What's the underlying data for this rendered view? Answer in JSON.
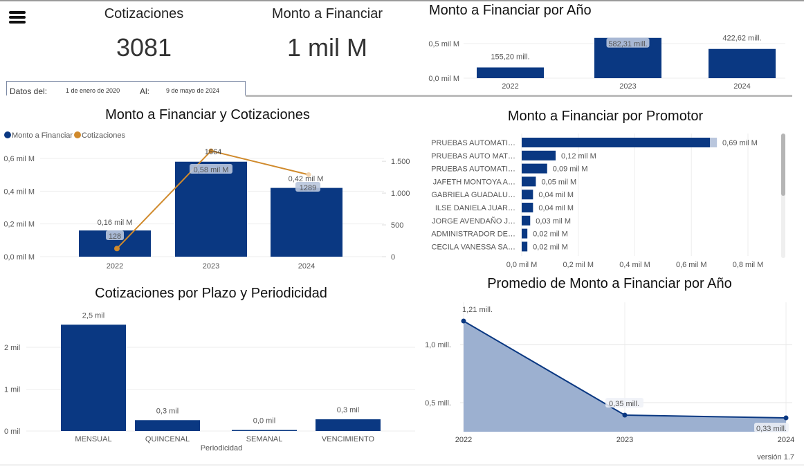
{
  "header": {
    "menu_icon": "hamburger-menu-icon",
    "kpis": [
      {
        "title": "Cotizaciones",
        "value": "3081"
      },
      {
        "title": "Monto a Financiar",
        "value": "1 mil M"
      }
    ],
    "date_range": {
      "from_label": "Datos del:",
      "from_value": "1 de enero de 2020",
      "to_label": "Al:",
      "to_value": "9 de mayo de 2024"
    }
  },
  "colors": {
    "bar": "#0a3882",
    "line": "#d08a2c",
    "area": "#9cb0d0",
    "label_bg": "#b9c6dd"
  },
  "footer": {
    "version": "versión 1.7"
  },
  "chart_data": [
    {
      "id": "monto-por-anio",
      "type": "bar",
      "title": "Monto a Financiar por Año",
      "categories": [
        "2022",
        "2023",
        "2024"
      ],
      "values": [
        155.2,
        582.31,
        422.62
      ],
      "data_labels": [
        "155,20 mill.",
        "582,31 mill.",
        "422,62 mill."
      ],
      "yticks": [
        0,
        500
      ],
      "ytick_labels": [
        "0,0 mil M",
        "0,5 mil M"
      ],
      "ylim": [
        0,
        600
      ],
      "unit": "millones"
    },
    {
      "id": "monto-y-cotizaciones",
      "type": "bar",
      "title": "Monto a Financiar y Cotizaciones",
      "legend": [
        "Monto a Financiar",
        "Cotizaciones"
      ],
      "legend_position": "top-left",
      "categories": [
        "2022",
        "2023",
        "2024"
      ],
      "series": [
        {
          "name": "Monto a Financiar",
          "type": "bar",
          "axis": "left",
          "values": [
            0.16,
            0.58,
            0.42
          ],
          "data_labels": [
            "0,16 mil M",
            "0,58 mil M",
            "0,42 mil M"
          ]
        },
        {
          "name": "Cotizaciones",
          "type": "line",
          "axis": "right",
          "values": [
            128,
            1664,
            1289
          ],
          "data_labels": [
            "128",
            "1664",
            "1289"
          ]
        }
      ],
      "yticks_left": [
        0,
        0.2,
        0.4,
        0.6
      ],
      "ytick_labels_left": [
        "0,0 mil M",
        "0,2 mil M",
        "0,4 mil M",
        "0,6 mil M"
      ],
      "ylim_left": [
        0,
        0.6
      ],
      "yticks_right": [
        0,
        500,
        1000,
        1500
      ],
      "ytick_labels_right": [
        "0",
        "500",
        "1.000",
        "1.500"
      ],
      "ylim_right": [
        0,
        1545
      ]
    },
    {
      "id": "monto-por-promotor",
      "type": "bar",
      "orientation": "horizontal",
      "title": "Monto a Financiar por Promotor",
      "categories": [
        "PRUEBAS AUTOMATI…",
        "PRUEBAS AUTO MAT…",
        "PRUEBAS AUTOMATI…",
        "JAFETH MONTOYA A…",
        "GABRIELA GUADALU…",
        "ILSE DANIELA JUAR…",
        "JORGE AVENDAÑO J…",
        "ADMINISTRADOR DE…",
        "CECILA VANESSA SA…"
      ],
      "values": [
        0.69,
        0.12,
        0.09,
        0.05,
        0.04,
        0.04,
        0.03,
        0.02,
        0.02
      ],
      "data_labels": [
        "0,69 mil M",
        "0,12 mil M",
        "0,09 mil M",
        "0,05 mil M",
        "0,04 mil M",
        "0,04 mil M",
        "0,03 mil M",
        "0,02 mil M",
        "0,02 mil M"
      ],
      "xticks": [
        0,
        0.2,
        0.4,
        0.6,
        0.8
      ],
      "xtick_labels": [
        "0,0 mil M",
        "0,2 mil M",
        "0,4 mil M",
        "0,6 mil M",
        "0,8 mil M"
      ],
      "xlim": [
        0,
        0.8
      ],
      "scroll_fraction": 0.5
    },
    {
      "id": "cotizaciones-por-plazo",
      "type": "bar",
      "title": "Cotizaciones por Plazo y Periodicidad",
      "xlabel": "Periodicidad",
      "categories": [
        "MENSUAL",
        "QUINCENAL",
        "SEMANAL",
        "VENCIMIENTO"
      ],
      "values": [
        2540,
        260,
        10,
        280
      ],
      "data_labels": [
        "2,5 mil",
        "0,3 mil",
        "0,0 mil",
        "0,3 mil"
      ],
      "yticks": [
        0,
        1000,
        2000
      ],
      "ytick_labels": [
        "0 mil",
        "1 mil",
        "2 mil"
      ],
      "ylim": [
        0,
        2800
      ]
    },
    {
      "id": "promedio-por-anio",
      "type": "area",
      "title": "Promedio de Monto a Financiar por Año",
      "categories": [
        "2022",
        "2023",
        "2024"
      ],
      "values": [
        1.21,
        0.35,
        0.33
      ],
      "data_labels": [
        "1,21 mill.",
        "0,35 mill.",
        "0,33 mill."
      ],
      "yticks": [
        0.5,
        1.0
      ],
      "ytick_labels": [
        "0,5 mill.",
        "1,0 mill."
      ],
      "ylim": [
        0.2,
        1.3
      ]
    }
  ]
}
